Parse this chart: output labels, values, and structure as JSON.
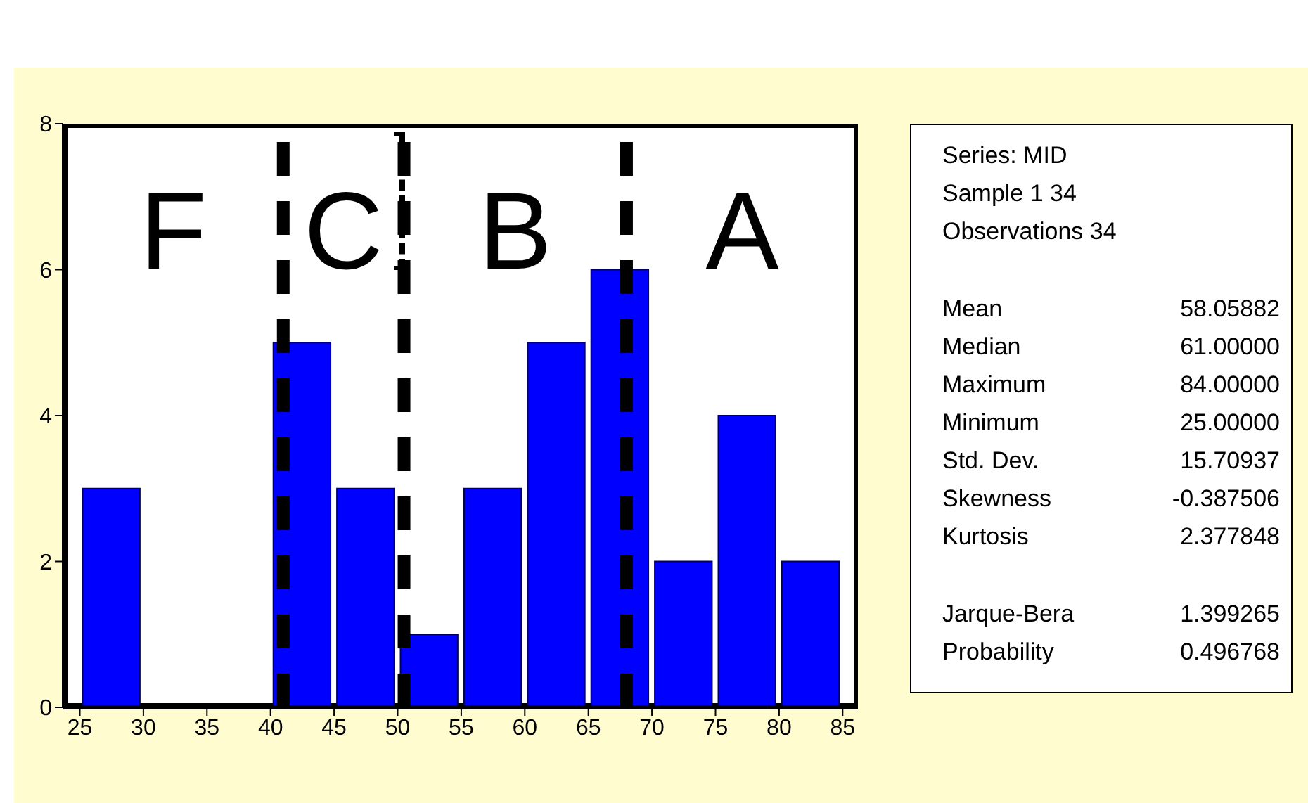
{
  "chart_data": {
    "type": "histogram",
    "bins": [
      25,
      30,
      35,
      40,
      45,
      50,
      55,
      60,
      65,
      70,
      75,
      80,
      85
    ],
    "values": [
      3,
      0,
      0,
      5,
      3,
      1,
      3,
      5,
      6,
      2,
      4,
      2
    ],
    "color": "#0000ff",
    "xlim": [
      23.7,
      86.2
    ],
    "xticks": [
      25,
      30,
      35,
      40,
      45,
      50,
      55,
      60,
      65,
      70,
      75,
      80,
      85
    ],
    "ylim": [
      0,
      8
    ],
    "yticks": [
      0,
      2,
      4,
      6,
      8
    ],
    "ref_lines": [
      {
        "axis": "x",
        "value": 41,
        "color": "#000000",
        "line_style": "dashed"
      },
      {
        "axis": "x",
        "value": 50.5,
        "color": "#000000",
        "line_style": "dashed"
      },
      {
        "axis": "x",
        "value": 68,
        "color": "#000000",
        "line_style": "dashed"
      }
    ],
    "annotations": [
      "F",
      "C",
      "B",
      "A",
      "Series: MID",
      "Sample 1 34",
      "Observations 34",
      "Mean 58.05882",
      "Median 61.00000",
      "Maximum 84.00000",
      "Minimum 25.00000",
      "Std. Dev. 15.70937",
      "Skewness -0.387506",
      "Kurtosis 2.377848",
      "Jarque-Bera 1.399265",
      "Probability 0.496768"
    ]
  }
}
